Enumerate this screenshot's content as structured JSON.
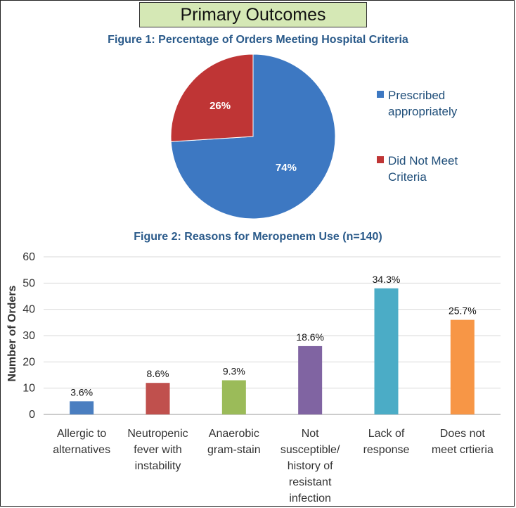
{
  "header": {
    "title": "Primary Outcomes"
  },
  "chart_data": [
    {
      "type": "pie",
      "title": "Figure 1: Percentage of Orders Meeting Hospital Criteria",
      "labels": [
        "Prescribed appropriately",
        "Did Not Meet Criteria"
      ],
      "values": [
        74,
        26
      ],
      "data_labels": [
        "74%",
        "26%"
      ],
      "colors": [
        "#3d78c2",
        "#bf3535"
      ],
      "legend": "right"
    },
    {
      "type": "bar",
      "title": "Figure 2: Reasons for Meropenem Use (n=140)",
      "xlabel": "",
      "ylabel": "Number of Orders",
      "categories": [
        "Allergic to alternatives",
        "Neutropenic fever with instability",
        "Anaerobic gram-stain",
        "Not susceptible/ history of resistant infection",
        "Lack of response",
        "Does not meet crtieria"
      ],
      "category_lines": [
        [
          "Allergic to",
          "alternatives"
        ],
        [
          "Neutropenic",
          "fever with",
          "instability"
        ],
        [
          "Anaerobic",
          "gram-stain"
        ],
        [
          "Not",
          "susceptible/",
          "history of",
          "resistant",
          "infection"
        ],
        [
          "Lack of",
          "response"
        ],
        [
          "Does not",
          "meet crtieria"
        ]
      ],
      "values": [
        5,
        12,
        13,
        26,
        48,
        36
      ],
      "data_labels": [
        "3.6%",
        "8.6%",
        "9.3%",
        "18.6%",
        "34.3%",
        "25.7%"
      ],
      "colors": [
        "#4a7ec0",
        "#c0504d",
        "#9bbb59",
        "#8064a2",
        "#4bacc6",
        "#f79646"
      ],
      "ylim": [
        0,
        60
      ],
      "yticks": [
        0,
        10,
        20,
        30,
        40,
        50,
        60
      ],
      "grid": true
    }
  ]
}
